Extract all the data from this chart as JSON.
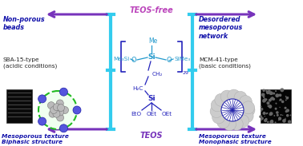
{
  "background_color": "#ffffff",
  "teos_free_label": "TEOS-free",
  "teos_label": "TEOS",
  "teos_free_color": "#bb44bb",
  "teos_color": "#7733bb",
  "arrow_color": "#7733bb",
  "bar_color": "#33ccee",
  "left_top_label": "Non-porous\nbeads",
  "left_mid_label": "SBA-15-type\n(acidic conditions)",
  "left_bot_label": "Mesoporous texture\nBiphasic structure",
  "right_top_label": "Desordered\nmesoporous\nnetwork",
  "right_mid_label": "MCM-41-type\n(basic conditions)",
  "right_bot_label": "Mesoporous texture\nMonophasic structure",
  "mol_color": "#2222bb",
  "mol_color2": "#2299cc"
}
